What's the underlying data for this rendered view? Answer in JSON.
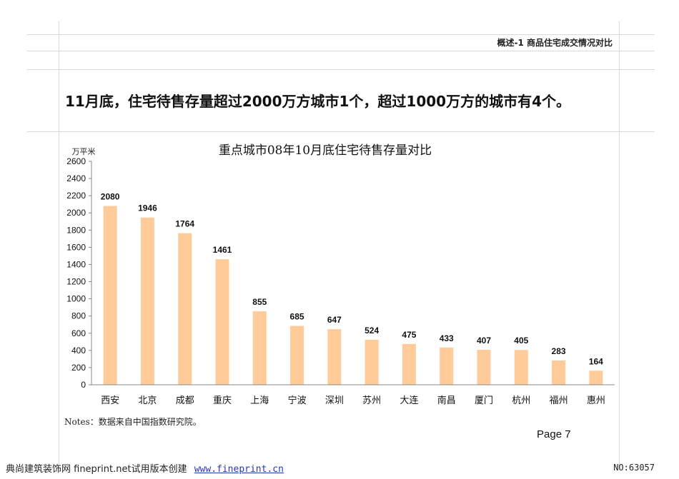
{
  "header": {
    "section_title": "概述-1  商品住宅成交情况对比",
    "headline": "11月底，住宅待售存量超过2000万方城市1个，超过1000万方的城市有4个。"
  },
  "colors": {
    "bar": "#FFCC99",
    "gridline": "#d9d9d9",
    "axis": "#888888"
  },
  "chart_data": {
    "type": "bar",
    "title": "重点城市08年10月底住宅待售存量对比",
    "ylabel": "万平米",
    "xlabel": "",
    "categories": [
      "西安",
      "北京",
      "成都",
      "重庆",
      "上海",
      "宁波",
      "深圳",
      "苏州",
      "大连",
      "南昌",
      "厦门",
      "杭州",
      "福州",
      "惠州"
    ],
    "values": [
      2080,
      1946,
      1764,
      1461,
      855,
      685,
      647,
      524,
      475,
      433,
      407,
      405,
      283,
      164
    ],
    "ylim": [
      0,
      2600
    ],
    "yticks": [
      0,
      200,
      400,
      600,
      800,
      1000,
      1200,
      1400,
      1600,
      1800,
      2000,
      2200,
      2400,
      2600
    ],
    "data_labels": true,
    "grid": false,
    "legend": "none"
  },
  "notes": "Notes：数据来自中国指数研究院。",
  "page": "Page 7",
  "footer": {
    "left_text": "典尚建筑装饰网 fineprint.net试用版本创建",
    "link": "www.fineprint.cn",
    "right_text": "NO:63057"
  }
}
